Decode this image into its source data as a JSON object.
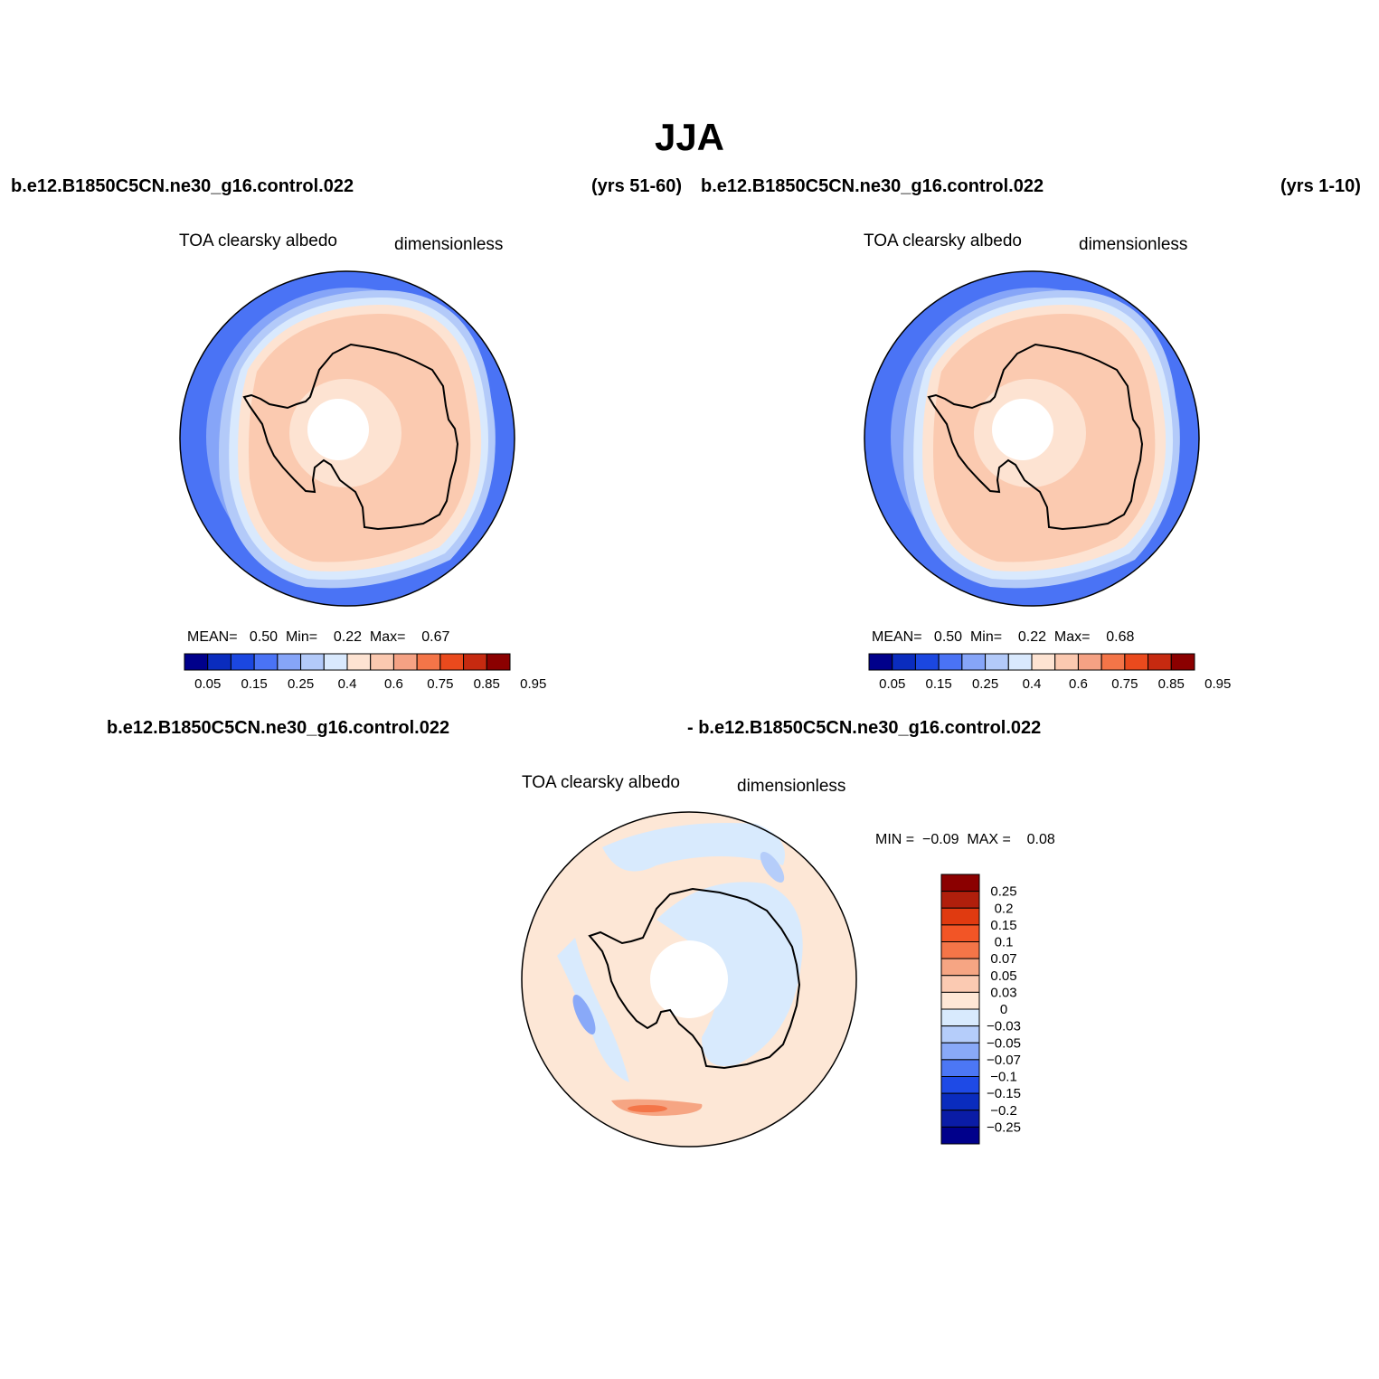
{
  "title": "JJA",
  "panels": [
    {
      "case_name": "b.e12.B1850C5CN.ne30_g16.control.022",
      "years": "(yrs 51-60)",
      "variable": "TOA clearsky albedo",
      "units": "dimensionless",
      "stats": {
        "mean_label": "MEAN=",
        "mean": "0.50",
        "min_label": "Min=",
        "min": "0.22",
        "max_label": "Max=",
        "max": "0.67"
      }
    },
    {
      "case_name": "b.e12.B1850C5CN.ne30_g16.control.022",
      "years": "(yrs 1-10)",
      "variable": "TOA clearsky albedo",
      "units": "dimensionless",
      "stats": {
        "mean_label": "MEAN=",
        "mean": "0.50",
        "min_label": "Min=",
        "min": "0.22",
        "max_label": "Max=",
        "max": "0.68"
      }
    }
  ],
  "difference": {
    "case_a": "b.e12.B1850C5CN.ne30_g16.control.022",
    "case_b": "- b.e12.B1850C5CN.ne30_g16.control.022",
    "variable": "TOA clearsky albedo",
    "units": "dimensionless",
    "stats": {
      "min_label": "MIN =",
      "min": "−0.09",
      "max_label": "MAX =",
      "max": "0.08"
    }
  },
  "colorbar_abs": {
    "colors": [
      "#00008b",
      "#0a2cbe",
      "#1b47e0",
      "#4a73f5",
      "#86a5f8",
      "#b3caf9",
      "#d9e9fd",
      "#fde3d2",
      "#fbc9b0",
      "#f5a284",
      "#f47548",
      "#ea4a1d",
      "#c62a10",
      "#8b0000"
    ],
    "tick_labels": [
      "0.05",
      "0.15",
      "0.25",
      "0.4",
      "0.6",
      "0.75",
      "0.85",
      "0.95"
    ]
  },
  "colorbar_diff": {
    "colors_top_to_bottom": [
      "#8b0000",
      "#b01f0c",
      "#e03a10",
      "#f25526",
      "#f47548",
      "#f6a583",
      "#fbcab2",
      "#fee7d6",
      "#d8eafd",
      "#b5cdfa",
      "#89a9f8",
      "#4c77f5",
      "#1e4ae6",
      "#0a2cbe",
      "#0a1ca6",
      "#00008b"
    ],
    "tick_labels": [
      "0.25",
      "0.2",
      "0.15",
      "0.1",
      "0.07",
      "0.05",
      "0.03",
      "0",
      "−0.03",
      "−0.05",
      "−0.07",
      "−0.1",
      "−0.15",
      "−0.2",
      "−0.25"
    ]
  },
  "chart_data": [
    {
      "type": "map",
      "projection": "south-polar-stereographic",
      "title": "TOA clearsky albedo",
      "units": "dimensionless",
      "field": "absolute",
      "mean": 0.5,
      "min": 0.22,
      "max": 0.67,
      "levels": [
        0.05,
        0.1,
        0.15,
        0.2,
        0.25,
        0.3,
        0.4,
        0.5,
        0.6,
        0.7,
        0.75,
        0.8,
        0.85,
        0.9,
        0.95
      ]
    },
    {
      "type": "map",
      "projection": "south-polar-stereographic",
      "title": "TOA clearsky albedo",
      "units": "dimensionless",
      "field": "absolute",
      "mean": 0.5,
      "min": 0.22,
      "max": 0.68,
      "levels": [
        0.05,
        0.1,
        0.15,
        0.2,
        0.25,
        0.3,
        0.4,
        0.5,
        0.6,
        0.7,
        0.75,
        0.8,
        0.85,
        0.9,
        0.95
      ]
    },
    {
      "type": "map",
      "projection": "south-polar-stereographic",
      "title": "TOA clearsky albedo",
      "units": "dimensionless",
      "field": "difference",
      "min": -0.09,
      "max": 0.08,
      "levels": [
        -0.25,
        -0.2,
        -0.15,
        -0.1,
        -0.07,
        -0.05,
        -0.03,
        0,
        0.03,
        0.05,
        0.07,
        0.1,
        0.15,
        0.2,
        0.25
      ]
    }
  ]
}
